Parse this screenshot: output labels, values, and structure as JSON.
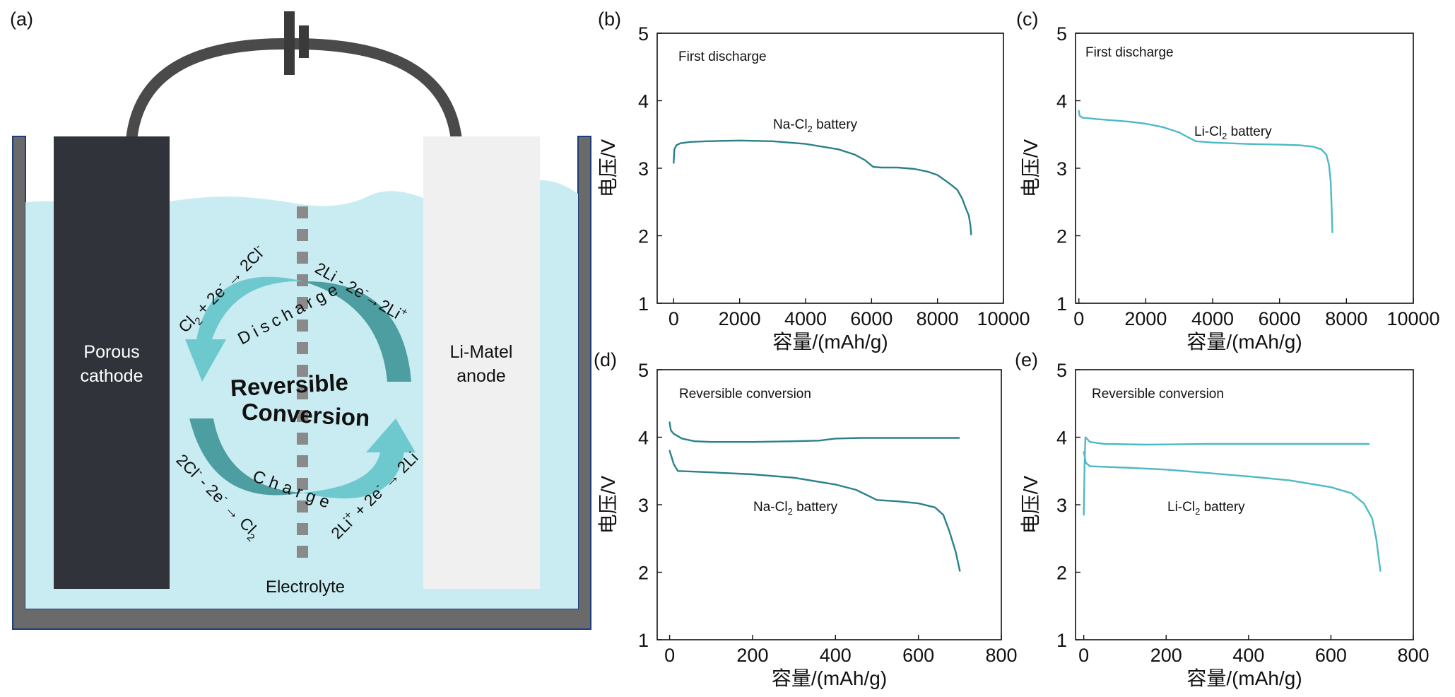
{
  "colors": {
    "teal_dark": "#2a8189",
    "teal_light": "#4cbac6",
    "arrow_light": "#6ec9cf",
    "arrow_dark": "#4d9ea0",
    "electrolyte": "#c9ecf2",
    "cathode": "#30343a",
    "anode": "#f0f0f0",
    "container": "#6a6a6a",
    "wire": "#4a4a4a",
    "separator": "#8a8a8a"
  },
  "schematic": {
    "panel_letter": "(a)",
    "cathode_label": [
      "Porous",
      "cathode"
    ],
    "anode_label": [
      "Li-Matel",
      "anode"
    ],
    "electrolyte_label": "Electrolyte",
    "center_label": [
      "Reversible",
      "Conversion"
    ],
    "discharge_word": "Discharge",
    "charge_word": "Charge",
    "rxn_top_left": {
      "parts": [
        "Cl",
        "2",
        " + 2e",
        "-",
        " → 2Cl",
        "-"
      ]
    },
    "rxn_top_right": {
      "parts": [
        "2Li - 2e",
        "-",
        "→2Li",
        "+"
      ]
    },
    "rxn_bottom_left": {
      "parts": [
        "2Cl",
        "-",
        " - 2e",
        "-",
        " → Cl",
        "2"
      ]
    },
    "rxn_bottom_right": {
      "parts": [
        "2Li",
        "+",
        " + 2e",
        "-",
        " → 2Li"
      ]
    }
  },
  "chart_data": [
    {
      "id": "b",
      "panel_letter": "(b)",
      "type": "line",
      "annotation": "First discharge",
      "series_label": {
        "main": "Na-Cl",
        "sub": "2",
        "rest": " battery"
      },
      "xlabel": "容量/(mAh/g)",
      "ylabel": "电压/V",
      "xlim": [
        -500,
        10000
      ],
      "ylim": [
        1,
        5
      ],
      "xticks": [
        "0",
        "2000",
        "4000",
        "6000",
        "8000",
        "10000"
      ],
      "xtick_values": [
        0,
        2000,
        4000,
        6000,
        8000,
        10000
      ],
      "yticks": [
        "1",
        "2",
        "3",
        "4",
        "5"
      ],
      "ytick_values": [
        1,
        2,
        3,
        4,
        5
      ],
      "series": [
        {
          "name": "Na-Cl2 battery first discharge",
          "color": "#2a8189",
          "points": [
            [
              0,
              3.08
            ],
            [
              20,
              3.28
            ],
            [
              80,
              3.34
            ],
            [
              200,
              3.37
            ],
            [
              500,
              3.39
            ],
            [
              1000,
              3.4
            ],
            [
              2000,
              3.41
            ],
            [
              3000,
              3.4
            ],
            [
              4000,
              3.36
            ],
            [
              5000,
              3.28
            ],
            [
              5500,
              3.2
            ],
            [
              5800,
              3.12
            ],
            [
              5950,
              3.06
            ],
            [
              6050,
              3.02
            ],
            [
              6300,
              3.01
            ],
            [
              6800,
              3.01
            ],
            [
              7300,
              2.99
            ],
            [
              7700,
              2.95
            ],
            [
              8000,
              2.9
            ],
            [
              8200,
              2.83
            ],
            [
              8400,
              2.76
            ],
            [
              8600,
              2.68
            ],
            [
              8750,
              2.55
            ],
            [
              8850,
              2.42
            ],
            [
              8950,
              2.3
            ],
            [
              9000,
              2.15
            ],
            [
              9020,
              2.02
            ]
          ]
        }
      ]
    },
    {
      "id": "c",
      "panel_letter": "(c)",
      "type": "line",
      "annotation": "First discharge",
      "series_label": {
        "main": "Li-Cl",
        "sub": "2",
        "rest": " battery"
      },
      "xlabel": "容量/(mAh/g)",
      "ylabel": "电压/V",
      "xlim": [
        -100,
        10000
      ],
      "ylim": [
        1,
        5
      ],
      "xticks": [
        "0",
        "2000",
        "4000",
        "6000",
        "8000",
        "10000"
      ],
      "xtick_values": [
        0,
        2000,
        4000,
        6000,
        8000,
        10000
      ],
      "yticks": [
        "1",
        "2",
        "3",
        "4",
        "5"
      ],
      "ytick_values": [
        1,
        2,
        3,
        4,
        5
      ],
      "series": [
        {
          "name": "Li-Cl2 battery first discharge",
          "color": "#4cbac6",
          "points": [
            [
              0,
              3.85
            ],
            [
              20,
              3.78
            ],
            [
              100,
              3.75
            ],
            [
              500,
              3.73
            ],
            [
              1000,
              3.71
            ],
            [
              1500,
              3.69
            ],
            [
              2000,
              3.66
            ],
            [
              2500,
              3.61
            ],
            [
              3000,
              3.53
            ],
            [
              3300,
              3.45
            ],
            [
              3500,
              3.4
            ],
            [
              4000,
              3.38
            ],
            [
              5000,
              3.36
            ],
            [
              6000,
              3.35
            ],
            [
              6600,
              3.34
            ],
            [
              7000,
              3.32
            ],
            [
              7250,
              3.28
            ],
            [
              7400,
              3.2
            ],
            [
              7480,
              3.05
            ],
            [
              7530,
              2.8
            ],
            [
              7560,
              2.4
            ],
            [
              7580,
              2.05
            ]
          ]
        }
      ]
    },
    {
      "id": "d",
      "panel_letter": "(d)",
      "type": "line",
      "annotation": "Reversible conversion",
      "series_label": {
        "main": "Na-Cl",
        "sub": "2",
        "rest": " battery"
      },
      "xlabel": "容量/(mAh/g)",
      "ylabel": "电压/V",
      "xlim": [
        -30,
        800
      ],
      "ylim": [
        1,
        5
      ],
      "xticks": [
        "0",
        "200",
        "400",
        "600",
        "800"
      ],
      "xtick_values": [
        0,
        200,
        400,
        600,
        800
      ],
      "yticks": [
        "1",
        "2",
        "3",
        "4",
        "5"
      ],
      "ytick_values": [
        1,
        2,
        3,
        4,
        5
      ],
      "series": [
        {
          "name": "Na-Cl2 charge",
          "color": "#2a8189",
          "points": [
            [
              0,
              4.22
            ],
            [
              3,
              4.1
            ],
            [
              10,
              4.05
            ],
            [
              30,
              3.98
            ],
            [
              60,
              3.94
            ],
            [
              100,
              3.93
            ],
            [
              200,
              3.93
            ],
            [
              300,
              3.94
            ],
            [
              360,
              3.95
            ],
            [
              400,
              3.98
            ],
            [
              460,
              3.99
            ],
            [
              600,
              3.99
            ],
            [
              698,
              3.99
            ]
          ]
        },
        {
          "name": "Na-Cl2 discharge",
          "color": "#2a8189",
          "points": [
            [
              0,
              3.8
            ],
            [
              10,
              3.6
            ],
            [
              20,
              3.5
            ],
            [
              60,
              3.49
            ],
            [
              100,
              3.48
            ],
            [
              200,
              3.45
            ],
            [
              300,
              3.4
            ],
            [
              400,
              3.3
            ],
            [
              450,
              3.22
            ],
            [
              480,
              3.13
            ],
            [
              500,
              3.07
            ],
            [
              550,
              3.05
            ],
            [
              600,
              3.02
            ],
            [
              640,
              2.96
            ],
            [
              660,
              2.85
            ],
            [
              675,
              2.6
            ],
            [
              690,
              2.3
            ],
            [
              700,
              2.02
            ]
          ]
        }
      ]
    },
    {
      "id": "e",
      "panel_letter": "(e)",
      "type": "line",
      "annotation": "Reversible conversion",
      "series_label": {
        "main": "Li-Cl",
        "sub": "2",
        "rest": " battery"
      },
      "xlabel": "容量/(mAh/g)",
      "ylabel": "电压/V",
      "xlim": [
        -20,
        800
      ],
      "ylim": [
        1,
        5
      ],
      "xticks": [
        "0",
        "200",
        "400",
        "600",
        "800"
      ],
      "xtick_values": [
        0,
        200,
        400,
        600,
        800
      ],
      "yticks": [
        "1",
        "2",
        "3",
        "4",
        "5"
      ],
      "ytick_values": [
        1,
        2,
        3,
        4,
        5
      ],
      "series": [
        {
          "name": "Li-Cl2 charge",
          "color": "#4cbac6",
          "points": [
            [
              0,
              2.85
            ],
            [
              2,
              3.6
            ],
            [
              4,
              4.0
            ],
            [
              15,
              3.93
            ],
            [
              50,
              3.9
            ],
            [
              150,
              3.89
            ],
            [
              300,
              3.9
            ],
            [
              500,
              3.9
            ],
            [
              692,
              3.9
            ]
          ]
        },
        {
          "name": "Li-Cl2 discharge",
          "color": "#4cbac6",
          "points": [
            [
              0,
              3.78
            ],
            [
              5,
              3.62
            ],
            [
              15,
              3.57
            ],
            [
              100,
              3.55
            ],
            [
              200,
              3.52
            ],
            [
              300,
              3.47
            ],
            [
              400,
              3.42
            ],
            [
              500,
              3.36
            ],
            [
              600,
              3.26
            ],
            [
              650,
              3.17
            ],
            [
              680,
              3.02
            ],
            [
              700,
              2.8
            ],
            [
              710,
              2.5
            ],
            [
              720,
              2.02
            ]
          ]
        }
      ]
    }
  ]
}
